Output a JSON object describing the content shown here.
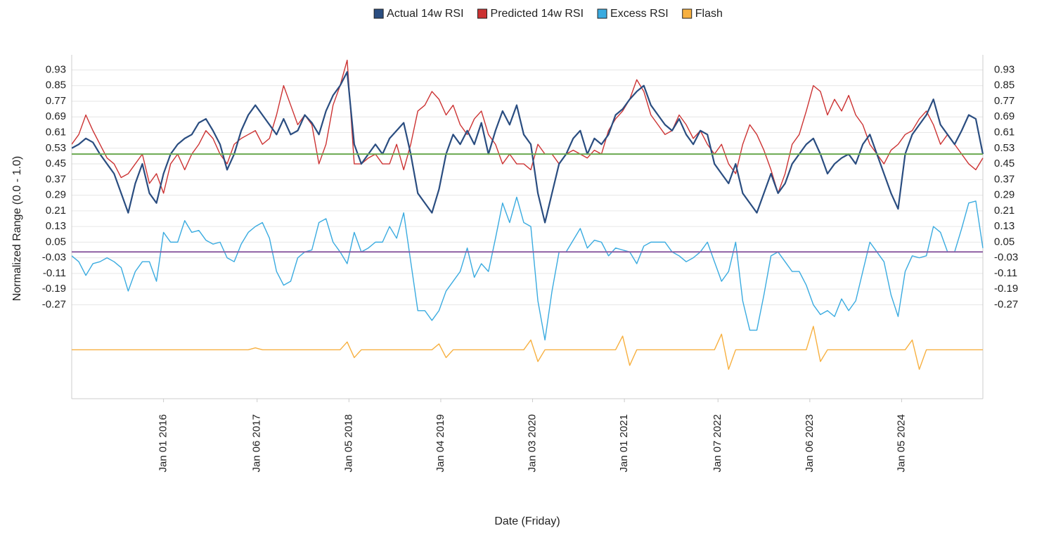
{
  "chart_data": {
    "type": "line",
    "xlabel": "Date (Friday)",
    "ylabel": "Normalized Range (0.0 - 1.0)",
    "legend": "top",
    "grid": true,
    "x": [
      "2015-01-02",
      "2015-01-30",
      "2015-02-27",
      "2015-03-27",
      "2015-04-24",
      "2015-05-22",
      "2015-06-19",
      "2015-07-17",
      "2015-08-14",
      "2015-09-11",
      "2015-10-09",
      "2015-11-06",
      "2015-12-04",
      "2016-01-01",
      "2016-01-29",
      "2016-02-26",
      "2016-03-25",
      "2016-04-22",
      "2016-05-20",
      "2016-06-17",
      "2016-07-15",
      "2016-08-12",
      "2016-09-09",
      "2016-10-07",
      "2016-11-04",
      "2016-12-02",
      "2016-12-30",
      "2017-01-27",
      "2017-02-24",
      "2017-03-24",
      "2017-04-21",
      "2017-05-19",
      "2017-06-16",
      "2017-07-14",
      "2017-08-11",
      "2017-09-08",
      "2017-10-06",
      "2017-11-03",
      "2017-12-01",
      "2017-12-29",
      "2018-01-26",
      "2018-02-23",
      "2018-03-23",
      "2018-04-20",
      "2018-05-18",
      "2018-06-15",
      "2018-07-13",
      "2018-08-10",
      "2018-09-07",
      "2018-10-05",
      "2018-11-02",
      "2018-11-30",
      "2018-12-28",
      "2019-01-25",
      "2019-02-22",
      "2019-03-22",
      "2019-04-19",
      "2019-05-17",
      "2019-06-14",
      "2019-07-12",
      "2019-08-09",
      "2019-09-06",
      "2019-10-04",
      "2019-11-01",
      "2019-11-29",
      "2019-12-27",
      "2020-01-24",
      "2020-02-21",
      "2020-03-20",
      "2020-04-17",
      "2020-05-15",
      "2020-06-12",
      "2020-07-10",
      "2020-08-07",
      "2020-09-04",
      "2020-10-02",
      "2020-10-30",
      "2020-11-27",
      "2020-12-25",
      "2021-01-22",
      "2021-02-19",
      "2021-03-19",
      "2021-04-16",
      "2021-05-14",
      "2021-06-11",
      "2021-07-09",
      "2021-08-06",
      "2021-09-03",
      "2021-10-01",
      "2021-10-29",
      "2021-11-26",
      "2021-12-24",
      "2022-01-21",
      "2022-02-18",
      "2022-03-18",
      "2022-04-15",
      "2022-05-13",
      "2022-06-10",
      "2022-07-08",
      "2022-08-05",
      "2022-09-02",
      "2022-09-30",
      "2022-10-28",
      "2022-11-25",
      "2022-12-23",
      "2023-01-20",
      "2023-02-17",
      "2023-03-17",
      "2023-04-14",
      "2023-05-12",
      "2023-06-09",
      "2023-07-07",
      "2023-08-04",
      "2023-09-01",
      "2023-09-29",
      "2023-10-27",
      "2023-11-24",
      "2023-12-22",
      "2024-01-19",
      "2024-02-16",
      "2024-03-15",
      "2024-04-12",
      "2024-05-10",
      "2024-06-07",
      "2024-07-05",
      "2024-08-02",
      "2024-08-30",
      "2024-09-27",
      "2024-10-25",
      "2024-11-22"
    ],
    "xlim": [
      "2015-01-02",
      "2024-11-22"
    ],
    "xticks": [
      {
        "value": "2016-01-01",
        "label": "Jan 01 2016"
      },
      {
        "value": "2017-01-06",
        "label": "Jan 06 2017"
      },
      {
        "value": "2018-01-05",
        "label": "Jan 05 2018"
      },
      {
        "value": "2019-01-04",
        "label": "Jan 04 2019"
      },
      {
        "value": "2020-01-03",
        "label": "Jan 03 2020"
      },
      {
        "value": "2021-01-01",
        "label": "Jan 01 2021"
      },
      {
        "value": "2022-01-07",
        "label": "Jan 07 2022"
      },
      {
        "value": "2023-01-06",
        "label": "Jan 06 2023"
      },
      {
        "value": "2024-01-05",
        "label": "Jan 05 2024"
      }
    ],
    "ylim": [
      -0.75,
      1.0
    ],
    "yticks": [
      0.93,
      0.85,
      0.77,
      0.69,
      0.61,
      0.53,
      0.45,
      0.37,
      0.29,
      0.21,
      0.13,
      0.05,
      -0.03,
      -0.11,
      -0.19,
      -0.27
    ],
    "y2lim": [
      -0.75,
      1.0
    ],
    "y2ticks": [
      0.93,
      0.85,
      0.77,
      0.69,
      0.61,
      0.53,
      0.45,
      0.37,
      0.29,
      0.21,
      0.13,
      0.05,
      -0.03,
      -0.11,
      -0.19,
      -0.27
    ],
    "reference_lines": [
      {
        "value": 0.5,
        "color": "#6aa84f"
      },
      {
        "value": 0,
        "color": "#8e5ea2"
      }
    ],
    "series": [
      {
        "name": "Excess RSI",
        "color": "#3aabe0",
        "values": [
          -0.02,
          -0.05,
          -0.12,
          -0.06,
          -0.05,
          -0.03,
          -0.05,
          -0.08,
          -0.2,
          -0.1,
          -0.05,
          -0.05,
          -0.15,
          0.1,
          0.05,
          0.05,
          0.16,
          0.1,
          0.11,
          0.06,
          0.04,
          0.05,
          -0.03,
          -0.05,
          0.04,
          0.1,
          0.13,
          0.15,
          0.07,
          -0.1,
          -0.17,
          -0.15,
          -0.03,
          0,
          0.01,
          0.15,
          0.17,
          0.05,
          0,
          -0.06,
          0.1,
          0,
          0.02,
          0.05,
          0.05,
          0.13,
          0.07,
          0.2,
          -0.05,
          -0.3,
          -0.3,
          -0.35,
          -0.3,
          -0.2,
          -0.15,
          -0.1,
          0.02,
          -0.13,
          -0.06,
          -0.1,
          0.07,
          0.25,
          0.15,
          0.28,
          0.15,
          0.13,
          -0.25,
          -0.45,
          -0.2,
          0,
          0,
          0.06,
          0.12,
          0.02,
          0.06,
          0.05,
          -0.02,
          0.02,
          0.01,
          0,
          -0.06,
          0.03,
          0.05,
          0.05,
          0.05,
          0,
          -0.02,
          -0.05,
          -0.03,
          0,
          0.05,
          -0.05,
          -0.15,
          -0.1,
          0.05,
          -0.25,
          -0.4,
          -0.4,
          -0.22,
          -0.02,
          0,
          -0.05,
          -0.1,
          -0.1,
          -0.17,
          -0.27,
          -0.32,
          -0.3,
          -0.33,
          -0.24,
          -0.3,
          -0.25,
          -0.1,
          0.05,
          0,
          -0.05,
          -0.22,
          -0.33,
          -0.1,
          -0.02,
          -0.03,
          -0.02,
          0.13,
          0.1,
          0,
          0,
          0.12,
          0.25,
          0.26,
          0.02
        ]
      },
      {
        "name": "Flash",
        "color": "#f7b040",
        "values": [
          -0.5,
          -0.5,
          -0.5,
          -0.5,
          -0.5,
          -0.5,
          -0.5,
          -0.5,
          -0.5,
          -0.5,
          -0.5,
          -0.5,
          -0.5,
          -0.5,
          -0.5,
          -0.5,
          -0.5,
          -0.5,
          -0.5,
          -0.5,
          -0.5,
          -0.5,
          -0.5,
          -0.5,
          -0.5,
          -0.5,
          -0.49,
          -0.5,
          -0.5,
          -0.5,
          -0.5,
          -0.5,
          -0.5,
          -0.5,
          -0.5,
          -0.5,
          -0.5,
          -0.5,
          -0.5,
          -0.46,
          -0.54,
          -0.5,
          -0.5,
          -0.5,
          -0.5,
          -0.5,
          -0.5,
          -0.5,
          -0.5,
          -0.5,
          -0.5,
          -0.5,
          -0.47,
          -0.54,
          -0.5,
          -0.5,
          -0.5,
          -0.5,
          -0.5,
          -0.5,
          -0.5,
          -0.5,
          -0.5,
          -0.5,
          -0.5,
          -0.45,
          -0.56,
          -0.5,
          -0.5,
          -0.5,
          -0.5,
          -0.5,
          -0.5,
          -0.5,
          -0.5,
          -0.5,
          -0.5,
          -0.5,
          -0.43,
          -0.58,
          -0.5,
          -0.5,
          -0.5,
          -0.5,
          -0.5,
          -0.5,
          -0.5,
          -0.5,
          -0.5,
          -0.5,
          -0.5,
          -0.5,
          -0.42,
          -0.6,
          -0.5,
          -0.5,
          -0.5,
          -0.5,
          -0.5,
          -0.5,
          -0.5,
          -0.5,
          -0.5,
          -0.5,
          -0.5,
          -0.38,
          -0.56,
          -0.5,
          -0.5,
          -0.5,
          -0.5,
          -0.5,
          -0.5,
          -0.5,
          -0.5,
          -0.5,
          -0.5,
          -0.5,
          -0.5,
          -0.45,
          -0.6,
          -0.5,
          -0.5,
          -0.5,
          -0.5,
          -0.5,
          -0.5,
          -0.5,
          -0.5,
          -0.5
        ]
      },
      {
        "name": "Predicted 14w RSI",
        "color": "#cc3333",
        "values": [
          0.55,
          0.6,
          0.7,
          0.62,
          0.55,
          0.48,
          0.45,
          0.38,
          0.4,
          0.45,
          0.5,
          0.35,
          0.4,
          0.3,
          0.45,
          0.5,
          0.42,
          0.5,
          0.55,
          0.62,
          0.58,
          0.5,
          0.45,
          0.55,
          0.58,
          0.6,
          0.62,
          0.55,
          0.58,
          0.7,
          0.85,
          0.75,
          0.65,
          0.7,
          0.65,
          0.45,
          0.55,
          0.75,
          0.85,
          0.98,
          0.45,
          0.45,
          0.48,
          0.5,
          0.45,
          0.45,
          0.55,
          0.42,
          0.55,
          0.72,
          0.75,
          0.82,
          0.78,
          0.7,
          0.75,
          0.65,
          0.6,
          0.68,
          0.72,
          0.6,
          0.55,
          0.45,
          0.5,
          0.45,
          0.45,
          0.42,
          0.55,
          0.5,
          0.5,
          0.45,
          0.5,
          0.52,
          0.5,
          0.48,
          0.52,
          0.5,
          0.62,
          0.68,
          0.72,
          0.78,
          0.88,
          0.82,
          0.7,
          0.65,
          0.6,
          0.62,
          0.7,
          0.65,
          0.58,
          0.62,
          0.55,
          0.5,
          0.55,
          0.45,
          0.4,
          0.55,
          0.65,
          0.6,
          0.52,
          0.42,
          0.3,
          0.4,
          0.55,
          0.6,
          0.72,
          0.85,
          0.82,
          0.7,
          0.78,
          0.72,
          0.8,
          0.7,
          0.65,
          0.55,
          0.5,
          0.45,
          0.52,
          0.55,
          0.6,
          0.62,
          0.68,
          0.72,
          0.65,
          0.55,
          0.6,
          0.55,
          0.5,
          0.45,
          0.42,
          0.48
        ]
      },
      {
        "name": "Actual 14w RSI",
        "color": "#2a4d80",
        "values": [
          0.53,
          0.55,
          0.58,
          0.56,
          0.5,
          0.45,
          0.4,
          0.3,
          0.2,
          0.35,
          0.45,
          0.3,
          0.25,
          0.4,
          0.5,
          0.55,
          0.58,
          0.6,
          0.66,
          0.68,
          0.62,
          0.55,
          0.42,
          0.5,
          0.62,
          0.7,
          0.75,
          0.7,
          0.65,
          0.6,
          0.68,
          0.6,
          0.62,
          0.7,
          0.66,
          0.6,
          0.72,
          0.8,
          0.85,
          0.92,
          0.55,
          0.45,
          0.5,
          0.55,
          0.5,
          0.58,
          0.62,
          0.66,
          0.5,
          0.3,
          0.25,
          0.2,
          0.32,
          0.5,
          0.6,
          0.55,
          0.62,
          0.55,
          0.66,
          0.5,
          0.62,
          0.72,
          0.65,
          0.75,
          0.6,
          0.55,
          0.3,
          0.15,
          0.3,
          0.45,
          0.5,
          0.58,
          0.62,
          0.5,
          0.58,
          0.55,
          0.6,
          0.7,
          0.73,
          0.78,
          0.82,
          0.85,
          0.75,
          0.7,
          0.65,
          0.62,
          0.68,
          0.6,
          0.55,
          0.62,
          0.6,
          0.45,
          0.4,
          0.35,
          0.45,
          0.3,
          0.25,
          0.2,
          0.3,
          0.4,
          0.3,
          0.35,
          0.45,
          0.5,
          0.55,
          0.58,
          0.5,
          0.4,
          0.45,
          0.48,
          0.5,
          0.45,
          0.55,
          0.6,
          0.5,
          0.4,
          0.3,
          0.22,
          0.5,
          0.6,
          0.65,
          0.7,
          0.78,
          0.65,
          0.6,
          0.55,
          0.62,
          0.7,
          0.68,
          0.5
        ]
      }
    ]
  }
}
